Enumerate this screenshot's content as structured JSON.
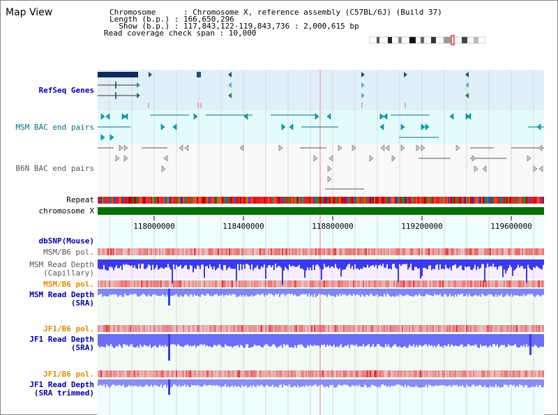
{
  "header": {
    "title": "Map View",
    "chromosome_line": "Chromosome      : Chromosome X, reference assembly (C57BL/6J) (Build 37)",
    "length_line": "Length (b.p.) : 166,650,296",
    "show_line": "  Show (b.p.) : 117,843,122-119,843,736 : 2,000,615 bp",
    "coverage_line": "Read coverage check span : 10,000"
  },
  "tracks": {
    "refseq": "RefSeq Genes",
    "msm_bac": "MSM BAC end pairs",
    "b6n_bac": "B6N BAC end pairs",
    "repeat": "Repeat",
    "chromosome": "chromosome X",
    "dbsnp": "dbSNP(Mouse)",
    "msm_b6_pol_1": "MSM/B6 pol.",
    "msm_read_depth_cap_1": "MSM Read Depth",
    "msm_read_depth_cap_2": "(Capillary)",
    "msm_b6_pol_2": "MSM/B6 pol.",
    "msm_read_depth_sra_1": "MSM Read Depth",
    "msm_read_depth_sra_2": "(SRA)",
    "jf1_b6_pol_1": "JF1/B6 pol.",
    "jf1_read_depth_sra_1": "JF1 Read Depth",
    "jf1_read_depth_sra_2": "(SRA)",
    "jf1_b6_pol_2": "JF1/B6 pol.",
    "jf1_read_depth_trim_1": "JF1 Read Depth",
    "jf1_read_depth_trim_2": "(SRA trimmed)"
  },
  "axis": {
    "ticks": [
      "118000000",
      "118400000",
      "118800000",
      "119200000",
      "119600000"
    ]
  },
  "colors": {
    "refseq_bg": "#dff0fb",
    "msm_bg": "#e4fbfb",
    "read_depth_blue": "#4d4dff",
    "pol_red": "#f06060",
    "chromosome_green": "#067006",
    "label_navy": "#0000aa",
    "label_orange": "#e08a00"
  }
}
